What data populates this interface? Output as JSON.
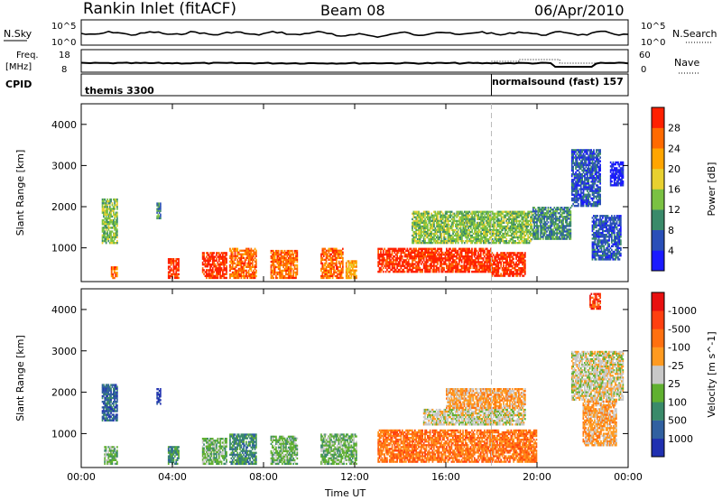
{
  "header": {
    "station": "Rankin Inlet (fitACF)",
    "beam": "Beam 08",
    "date": "06/Apr/2010"
  },
  "strip_nsky": {
    "left_label": "N.Sky",
    "left_ticks": [
      "10^5",
      "10^0"
    ],
    "right_label": "N.Search",
    "right_ticks": [
      "10^5",
      "10^0"
    ]
  },
  "strip_freq": {
    "left_label_1": "Freq.",
    "left_label_2": "[MHz]",
    "left_ticks": [
      "18",
      "8"
    ],
    "right_label": "Nave",
    "right_ticks": [
      "60",
      "0"
    ]
  },
  "cpid": {
    "label": "CPID",
    "mode1": "themis 3300",
    "mode2": "normalsound (fast) 157",
    "switch_time_h": 18.0
  },
  "colors": {
    "power": [
      "#1a1aff",
      "#2a4fb8",
      "#3a8a6a",
      "#7ac142",
      "#e8d030",
      "#ffa500",
      "#ff6a00",
      "#ff2000"
    ],
    "velocity": [
      "#2030b0",
      "#3060a0",
      "#3a8a6a",
      "#60b030",
      "#c8c8c8",
      "#ff9a20",
      "#ff7010",
      "#ff4010",
      "#e81010"
    ]
  },
  "chart_data": [
    {
      "type": "heatmap",
      "title": "Power",
      "ylabel": "Slant Range [km]",
      "xlabel": "",
      "xlim": [
        0,
        24
      ],
      "ylim": [
        180,
        4500
      ],
      "x_ticks": [
        "00:00",
        "04:00",
        "08:00",
        "12:00",
        "16:00",
        "20:00",
        "00:00"
      ],
      "y_ticks": [
        1000,
        2000,
        3000,
        4000
      ],
      "colorbar_label": "Power [dB]",
      "colorbar_ticks": [
        4,
        8,
        12,
        16,
        20,
        24,
        28
      ],
      "regions": [
        {
          "t0": 0.9,
          "t1": 1.6,
          "r0": 1100,
          "r1": 2200,
          "level": 3
        },
        {
          "t0": 3.3,
          "t1": 3.5,
          "r0": 1700,
          "r1": 2100,
          "level": 2
        },
        {
          "t0": 1.3,
          "t1": 1.6,
          "r0": 250,
          "r1": 550,
          "level": 6
        },
        {
          "t0": 3.8,
          "t1": 4.3,
          "r0": 250,
          "r1": 750,
          "level": 7
        },
        {
          "t0": 5.3,
          "t1": 6.4,
          "r0": 250,
          "r1": 900,
          "level": 7
        },
        {
          "t0": 6.5,
          "t1": 7.7,
          "r0": 250,
          "r1": 1000,
          "level": 6
        },
        {
          "t0": 8.3,
          "t1": 9.5,
          "r0": 250,
          "r1": 950,
          "level": 6
        },
        {
          "t0": 10.5,
          "t1": 11.5,
          "r0": 250,
          "r1": 1000,
          "level": 6
        },
        {
          "t0": 11.6,
          "t1": 12.1,
          "r0": 250,
          "r1": 700,
          "level": 5
        },
        {
          "t0": 13.0,
          "t1": 18.0,
          "r0": 400,
          "r1": 1000,
          "level": 7
        },
        {
          "t0": 18.0,
          "t1": 19.5,
          "r0": 300,
          "r1": 900,
          "level": 7
        },
        {
          "t0": 14.5,
          "t1": 19.8,
          "r0": 1100,
          "r1": 1900,
          "level": 3
        },
        {
          "t0": 19.8,
          "t1": 21.5,
          "r0": 1200,
          "r1": 2000,
          "level": 2
        },
        {
          "t0": 21.5,
          "t1": 22.8,
          "r0": 2000,
          "r1": 3400,
          "level": 1
        },
        {
          "t0": 22.4,
          "t1": 23.7,
          "r0": 700,
          "r1": 1800,
          "level": 1
        },
        {
          "t0": 23.2,
          "t1": 23.8,
          "r0": 2500,
          "r1": 3100,
          "level": 0
        }
      ]
    },
    {
      "type": "heatmap",
      "title": "Velocity",
      "ylabel": "Slant Range [km]",
      "xlabel": "Time UT",
      "xlim": [
        0,
        24
      ],
      "ylim": [
        180,
        4500
      ],
      "x_ticks": [
        "00:00",
        "04:00",
        "08:00",
        "12:00",
        "16:00",
        "20:00",
        "00:00"
      ],
      "y_ticks": [
        1000,
        2000,
        3000,
        4000
      ],
      "colorbar_label": "Velocity [m s^-1]",
      "colorbar_ticks": [
        "1000",
        "500",
        "100",
        "25",
        "-25",
        "-100",
        "-500",
        "-1000"
      ],
      "regions": [
        {
          "t0": 0.9,
          "t1": 1.6,
          "r0": 1300,
          "r1": 2200,
          "level": 1
        },
        {
          "t0": 3.3,
          "t1": 3.5,
          "r0": 1700,
          "r1": 2100,
          "level": 0
        },
        {
          "t0": 1.0,
          "t1": 1.6,
          "r0": 250,
          "r1": 700,
          "level": 3
        },
        {
          "t0": 3.8,
          "t1": 4.3,
          "r0": 250,
          "r1": 700,
          "level": 2
        },
        {
          "t0": 5.3,
          "t1": 6.4,
          "r0": 250,
          "r1": 900,
          "level": 3
        },
        {
          "t0": 6.5,
          "t1": 7.7,
          "r0": 250,
          "r1": 1000,
          "level": 2
        },
        {
          "t0": 8.3,
          "t1": 9.5,
          "r0": 250,
          "r1": 950,
          "level": 3
        },
        {
          "t0": 10.5,
          "t1": 12.1,
          "r0": 250,
          "r1": 1000,
          "level": 3
        },
        {
          "t0": 13.0,
          "t1": 20.0,
          "r0": 300,
          "r1": 1100,
          "level": 6
        },
        {
          "t0": 15.0,
          "t1": 19.5,
          "r0": 1200,
          "r1": 1600,
          "level": 4
        },
        {
          "t0": 16.0,
          "t1": 19.5,
          "r0": 1600,
          "r1": 2100,
          "level": 5
        },
        {
          "t0": 21.5,
          "t1": 23.8,
          "r0": 1800,
          "r1": 3000,
          "level": 4
        },
        {
          "t0": 22.0,
          "t1": 23.5,
          "r0": 700,
          "r1": 1800,
          "level": 5
        },
        {
          "t0": 22.3,
          "t1": 22.8,
          "r0": 4000,
          "r1": 4400,
          "level": 7
        }
      ]
    }
  ]
}
